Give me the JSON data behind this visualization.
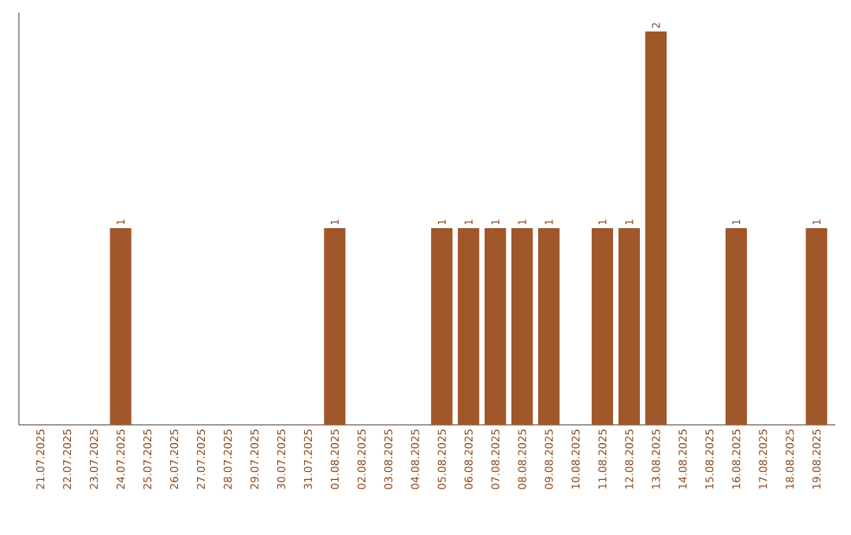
{
  "chart_data": {
    "type": "bar",
    "categories": [
      "21.07.2025",
      "22.07.2025",
      "23.07.2025",
      "24.07.2025",
      "25.07.2025",
      "26.07.2025",
      "27.07.2025",
      "28.07.2025",
      "29.07.2025",
      "30.07.2025",
      "31.07.2025",
      "01.08.2025",
      "02.08.2025",
      "03.08.2025",
      "04.08.2025",
      "05.08.2025",
      "06.08.2025",
      "07.08.2025",
      "08.08.2025",
      "09.08.2025",
      "10.08.2025",
      "11.08.2025",
      "12.08.2025",
      "13.08.2025",
      "14.08.2025",
      "15.08.2025",
      "16.08.2025",
      "17.08.2025",
      "18.08.2025",
      "19.08.2025"
    ],
    "values": [
      0,
      0,
      0,
      1,
      0,
      0,
      0,
      0,
      0,
      0,
      0,
      1,
      0,
      0,
      0,
      1,
      1,
      1,
      1,
      1,
      0,
      1,
      1,
      2,
      0,
      0,
      1,
      0,
      0,
      1
    ],
    "value_labels": [
      null,
      null,
      null,
      "1",
      null,
      null,
      null,
      null,
      null,
      null,
      null,
      "1",
      null,
      null,
      null,
      "1",
      "1",
      "1",
      "1",
      "1",
      null,
      "1",
      "1",
      "2",
      null,
      null,
      "1",
      null,
      null,
      "1"
    ],
    "color": "#a0572a",
    "tick_labels": "x"
  }
}
